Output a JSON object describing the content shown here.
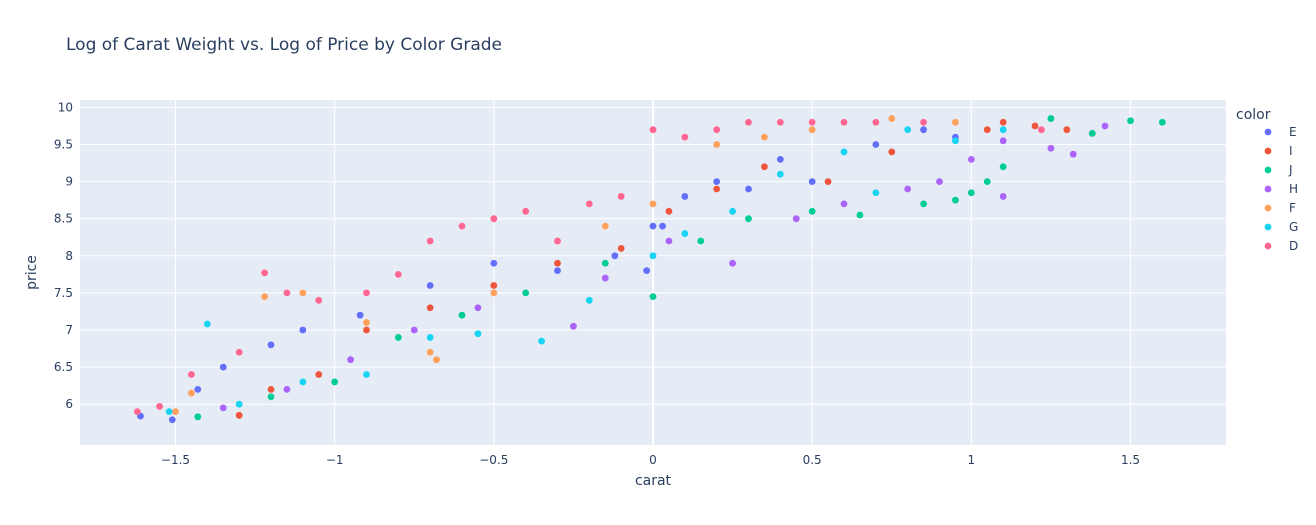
{
  "chart_data": {
    "type": "scatter",
    "title": "Log of Carat Weight vs. Log of Price by Color Grade",
    "xlabel": "carat",
    "ylabel": "price",
    "xlim": [
      -1.8,
      1.8
    ],
    "ylim": [
      5.45,
      10.1
    ],
    "x_ticks": [
      -1.5,
      -1,
      -0.5,
      0,
      0.5,
      1,
      1.5
    ],
    "x_tick_labels": [
      "−1.5",
      "−1",
      "−0.5",
      "0",
      "0.5",
      "1",
      "1.5"
    ],
    "y_ticks": [
      6,
      6.5,
      7,
      7.5,
      8,
      8.5,
      9,
      9.5,
      10
    ],
    "y_tick_labels": [
      "6",
      "6.5",
      "7",
      "7.5",
      "8",
      "8.5",
      "9",
      "9.5",
      "10"
    ],
    "grid": true,
    "legend": {
      "title": "color",
      "placement": "right",
      "entries": [
        {
          "name": "E",
          "color": "#636efa"
        },
        {
          "name": "I",
          "color": "#ef553b"
        },
        {
          "name": "J",
          "color": "#00cc96"
        },
        {
          "name": "H",
          "color": "#ab63fa"
        },
        {
          "name": "F",
          "color": "#ffa15a"
        },
        {
          "name": "G",
          "color": "#19d3f3"
        },
        {
          "name": "D",
          "color": "#ff6692"
        }
      ]
    },
    "series": [
      {
        "name": "E",
        "color": "#636efa",
        "points": [
          [
            -1.61,
            5.84
          ],
          [
            -1.51,
            5.79
          ],
          [
            -1.43,
            6.2
          ],
          [
            -1.35,
            6.5
          ],
          [
            -1.2,
            6.8
          ],
          [
            -1.1,
            7.0
          ],
          [
            -0.92,
            7.2
          ],
          [
            -0.7,
            7.6
          ],
          [
            -0.5,
            7.9
          ],
          [
            -0.3,
            7.8
          ],
          [
            -0.12,
            8.0
          ],
          [
            0.0,
            8.4
          ],
          [
            0.1,
            8.8
          ],
          [
            0.2,
            9.0
          ],
          [
            0.3,
            8.9
          ],
          [
            0.4,
            9.3
          ],
          [
            0.5,
            9.0
          ],
          [
            0.7,
            9.5
          ],
          [
            0.85,
            9.7
          ],
          [
            0.95,
            9.6
          ],
          [
            -0.02,
            7.8
          ],
          [
            0.03,
            8.4
          ]
        ]
      },
      {
        "name": "I",
        "color": "#ef553b",
        "points": [
          [
            -1.3,
            5.85
          ],
          [
            -1.2,
            6.2
          ],
          [
            -1.05,
            6.4
          ],
          [
            -0.9,
            7.0
          ],
          [
            -0.7,
            7.3
          ],
          [
            -0.5,
            7.6
          ],
          [
            -0.3,
            7.9
          ],
          [
            -0.1,
            8.1
          ],
          [
            0.05,
            8.6
          ],
          [
            0.2,
            8.9
          ],
          [
            0.35,
            9.2
          ],
          [
            0.55,
            9.0
          ],
          [
            0.75,
            9.4
          ],
          [
            1.05,
            9.7
          ],
          [
            1.2,
            9.75
          ],
          [
            1.3,
            9.7
          ],
          [
            1.38,
            9.65
          ],
          [
            1.1,
            9.8
          ]
        ]
      },
      {
        "name": "J",
        "color": "#00cc96",
        "points": [
          [
            -1.43,
            5.83
          ],
          [
            -1.2,
            6.1
          ],
          [
            -1.0,
            6.3
          ],
          [
            -0.8,
            6.9
          ],
          [
            -0.6,
            7.2
          ],
          [
            -0.4,
            7.5
          ],
          [
            -0.15,
            7.9
          ],
          [
            0.0,
            7.45
          ],
          [
            0.15,
            8.2
          ],
          [
            0.3,
            8.5
          ],
          [
            0.5,
            8.6
          ],
          [
            0.65,
            8.55
          ],
          [
            0.85,
            8.7
          ],
          [
            0.95,
            8.75
          ],
          [
            1.0,
            8.85
          ],
          [
            1.05,
            9.0
          ],
          [
            1.1,
            9.2
          ],
          [
            1.25,
            9.85
          ],
          [
            1.38,
            9.65
          ],
          [
            1.5,
            9.82
          ],
          [
            1.6,
            9.8
          ]
        ]
      },
      {
        "name": "H",
        "color": "#ab63fa",
        "points": [
          [
            -1.35,
            5.95
          ],
          [
            -1.15,
            6.2
          ],
          [
            -0.95,
            6.6
          ],
          [
            -0.75,
            7.0
          ],
          [
            -0.55,
            7.3
          ],
          [
            -0.25,
            7.05
          ],
          [
            -0.15,
            7.7
          ],
          [
            0.05,
            8.2
          ],
          [
            0.25,
            7.9
          ],
          [
            0.45,
            8.5
          ],
          [
            0.6,
            8.7
          ],
          [
            0.8,
            8.9
          ],
          [
            0.9,
            9.0
          ],
          [
            1.0,
            9.3
          ],
          [
            1.1,
            9.55
          ],
          [
            1.25,
            9.45
          ],
          [
            1.32,
            9.37
          ],
          [
            1.42,
            9.75
          ],
          [
            1.1,
            8.8
          ]
        ]
      },
      {
        "name": "F",
        "color": "#ffa15a",
        "points": [
          [
            -1.5,
            5.9
          ],
          [
            -1.45,
            6.15
          ],
          [
            -1.22,
            7.45
          ],
          [
            -1.1,
            7.5
          ],
          [
            -0.9,
            7.1
          ],
          [
            -0.7,
            6.7
          ],
          [
            -0.5,
            7.5
          ],
          [
            -0.3,
            8.2
          ],
          [
            -0.15,
            8.4
          ],
          [
            0.0,
            8.7
          ],
          [
            0.2,
            9.5
          ],
          [
            0.35,
            9.6
          ],
          [
            0.5,
            9.7
          ],
          [
            0.75,
            9.85
          ],
          [
            0.95,
            9.8
          ],
          [
            -0.68,
            6.6
          ]
        ]
      },
      {
        "name": "G",
        "color": "#19d3f3",
        "points": [
          [
            -1.52,
            5.9
          ],
          [
            -1.4,
            7.08
          ],
          [
            -1.3,
            6.0
          ],
          [
            -1.1,
            6.3
          ],
          [
            -0.9,
            6.4
          ],
          [
            -0.7,
            6.9
          ],
          [
            -0.55,
            6.95
          ],
          [
            -0.35,
            6.85
          ],
          [
            -0.2,
            7.4
          ],
          [
            0.0,
            8.0
          ],
          [
            0.1,
            8.3
          ],
          [
            0.25,
            8.6
          ],
          [
            0.4,
            9.1
          ],
          [
            0.6,
            9.4
          ],
          [
            0.8,
            9.7
          ],
          [
            0.95,
            9.55
          ],
          [
            1.1,
            9.7
          ],
          [
            0.7,
            8.85
          ]
        ]
      },
      {
        "name": "D",
        "color": "#ff6692",
        "points": [
          [
            -1.62,
            5.9
          ],
          [
            -1.55,
            5.97
          ],
          [
            -1.45,
            6.4
          ],
          [
            -1.3,
            6.7
          ],
          [
            -1.22,
            7.77
          ],
          [
            -1.15,
            7.5
          ],
          [
            -1.05,
            7.4
          ],
          [
            -0.9,
            7.5
          ],
          [
            -0.8,
            7.75
          ],
          [
            -0.7,
            8.2
          ],
          [
            -0.6,
            8.4
          ],
          [
            -0.5,
            8.5
          ],
          [
            -0.4,
            8.6
          ],
          [
            -0.3,
            8.2
          ],
          [
            -0.2,
            8.7
          ],
          [
            -0.1,
            8.8
          ],
          [
            0.0,
            9.7
          ],
          [
            0.1,
            9.6
          ],
          [
            0.2,
            9.7
          ],
          [
            0.3,
            9.8
          ],
          [
            0.4,
            9.8
          ],
          [
            0.5,
            9.8
          ],
          [
            0.6,
            9.8
          ],
          [
            0.7,
            9.8
          ],
          [
            0.85,
            9.8
          ],
          [
            1.22,
            9.7
          ]
        ]
      }
    ]
  }
}
